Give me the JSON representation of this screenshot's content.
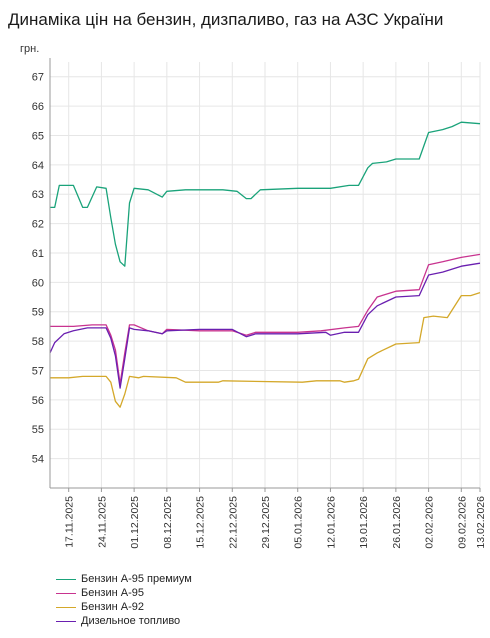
{
  "chart_data": {
    "type": "line",
    "title": "Динаміка цін на бензин, дизпаливо, газ на АЗС України",
    "ylabel": "грн.",
    "ylim": [
      53,
      67.5
    ],
    "yticks": [
      54,
      55,
      56,
      57,
      58,
      59,
      60,
      61,
      62,
      63,
      64,
      65,
      66,
      67
    ],
    "xlim": [
      "2025-11-13",
      "2026-02-13"
    ],
    "xticks": [
      "17.11.2025",
      "24.11.2025",
      "01.12.2025",
      "08.12.2025",
      "15.12.2025",
      "22.12.2025",
      "29.12.2025",
      "05.01.2026",
      "12.01.2026",
      "19.01.2026",
      "26.01.2026",
      "02.02.2026",
      "09.02.2026",
      "13.02.2026"
    ],
    "grid": true,
    "legend": "bottom",
    "series": [
      {
        "name": "Бензин А-95 премиум",
        "color": "#1aa37a",
        "points": [
          [
            "2025-11-13",
            62.55
          ],
          [
            "2025-11-14",
            62.55
          ],
          [
            "2025-11-15",
            63.3
          ],
          [
            "2025-11-18",
            63.3
          ],
          [
            "2025-11-20",
            62.55
          ],
          [
            "2025-11-21",
            62.55
          ],
          [
            "2025-11-23",
            63.25
          ],
          [
            "2025-11-25",
            63.2
          ],
          [
            "2025-11-26",
            62.2
          ],
          [
            "2025-11-27",
            61.3
          ],
          [
            "2025-11-28",
            60.7
          ],
          [
            "2025-11-29",
            60.55
          ],
          [
            "2025-11-30",
            62.7
          ],
          [
            "2025-12-01",
            63.2
          ],
          [
            "2025-12-04",
            63.15
          ],
          [
            "2025-12-07",
            62.9
          ],
          [
            "2025-12-08",
            63.1
          ],
          [
            "2025-12-12",
            63.15
          ],
          [
            "2025-12-20",
            63.15
          ],
          [
            "2025-12-23",
            63.1
          ],
          [
            "2025-12-25",
            62.85
          ],
          [
            "2025-12-26",
            62.85
          ],
          [
            "2025-12-28",
            63.15
          ],
          [
            "2026-01-05",
            63.2
          ],
          [
            "2026-01-12",
            63.2
          ],
          [
            "2026-01-16",
            63.3
          ],
          [
            "2026-01-18",
            63.3
          ],
          [
            "2026-01-20",
            63.9
          ],
          [
            "2026-01-21",
            64.05
          ],
          [
            "2026-01-24",
            64.1
          ],
          [
            "2026-01-26",
            64.2
          ],
          [
            "2026-01-31",
            64.2
          ],
          [
            "2026-02-02",
            65.1
          ],
          [
            "2026-02-05",
            65.2
          ],
          [
            "2026-02-07",
            65.3
          ],
          [
            "2026-02-09",
            65.45
          ],
          [
            "2026-02-13",
            65.4
          ]
        ]
      },
      {
        "name": "Бензин А-95",
        "color": "#c8338f",
        "points": [
          [
            "2025-11-13",
            58.5
          ],
          [
            "2025-11-18",
            58.5
          ],
          [
            "2025-11-22",
            58.55
          ],
          [
            "2025-11-25",
            58.55
          ],
          [
            "2025-11-26",
            58.2
          ],
          [
            "2025-11-27",
            57.7
          ],
          [
            "2025-11-28",
            56.55
          ],
          [
            "2025-11-29",
            57.6
          ],
          [
            "2025-11-30",
            58.55
          ],
          [
            "2025-12-01",
            58.55
          ],
          [
            "2025-12-04",
            58.35
          ],
          [
            "2025-12-07",
            58.25
          ],
          [
            "2025-12-08",
            58.4
          ],
          [
            "2025-12-15",
            58.35
          ],
          [
            "2025-12-22",
            58.35
          ],
          [
            "2025-12-25",
            58.2
          ],
          [
            "2025-12-27",
            58.3
          ],
          [
            "2026-01-05",
            58.3
          ],
          [
            "2026-01-10",
            58.35
          ],
          [
            "2026-01-15",
            58.45
          ],
          [
            "2026-01-18",
            58.5
          ],
          [
            "2026-01-20",
            59.05
          ],
          [
            "2026-01-22",
            59.5
          ],
          [
            "2026-01-26",
            59.7
          ],
          [
            "2026-01-31",
            59.75
          ],
          [
            "2026-02-02",
            60.6
          ],
          [
            "2026-02-05",
            60.7
          ],
          [
            "2026-02-09",
            60.85
          ],
          [
            "2026-02-13",
            60.95
          ]
        ]
      },
      {
        "name": "Бензин А-92",
        "color": "#d4a82a",
        "points": [
          [
            "2025-11-13",
            56.75
          ],
          [
            "2025-11-17",
            56.75
          ],
          [
            "2025-11-20",
            56.8
          ],
          [
            "2025-11-25",
            56.8
          ],
          [
            "2025-11-26",
            56.6
          ],
          [
            "2025-11-27",
            55.95
          ],
          [
            "2025-11-28",
            55.75
          ],
          [
            "2025-11-29",
            56.2
          ],
          [
            "2025-11-30",
            56.8
          ],
          [
            "2025-12-02",
            56.75
          ],
          [
            "2025-12-03",
            56.8
          ],
          [
            "2025-12-10",
            56.75
          ],
          [
            "2025-12-12",
            56.6
          ],
          [
            "2025-12-19",
            56.6
          ],
          [
            "2025-12-20",
            56.65
          ],
          [
            "2026-01-06",
            56.6
          ],
          [
            "2026-01-09",
            56.65
          ],
          [
            "2026-01-14",
            56.65
          ],
          [
            "2026-01-15",
            56.6
          ],
          [
            "2026-01-17",
            56.65
          ],
          [
            "2026-01-18",
            56.7
          ],
          [
            "2026-01-20",
            57.4
          ],
          [
            "2026-01-22",
            57.6
          ],
          [
            "2026-01-26",
            57.9
          ],
          [
            "2026-01-31",
            57.95
          ],
          [
            "2026-02-01",
            58.8
          ],
          [
            "2026-02-03",
            58.85
          ],
          [
            "2026-02-06",
            58.8
          ],
          [
            "2026-02-09",
            59.55
          ],
          [
            "2026-02-11",
            59.55
          ],
          [
            "2026-02-13",
            59.65
          ]
        ]
      },
      {
        "name": "Дизельное топливо",
        "color": "#6a1fb0",
        "points": [
          [
            "2025-11-13",
            57.6
          ],
          [
            "2025-11-14",
            57.95
          ],
          [
            "2025-11-16",
            58.25
          ],
          [
            "2025-11-18",
            58.35
          ],
          [
            "2025-11-21",
            58.45
          ],
          [
            "2025-11-25",
            58.45
          ],
          [
            "2025-11-26",
            58.1
          ],
          [
            "2025-11-27",
            57.5
          ],
          [
            "2025-11-28",
            56.4
          ],
          [
            "2025-11-29",
            57.4
          ],
          [
            "2025-11-30",
            58.45
          ],
          [
            "2025-12-01",
            58.4
          ],
          [
            "2025-12-04",
            58.35
          ],
          [
            "2025-12-07",
            58.25
          ],
          [
            "2025-12-08",
            58.35
          ],
          [
            "2025-12-15",
            58.4
          ],
          [
            "2025-12-22",
            58.4
          ],
          [
            "2025-12-25",
            58.15
          ],
          [
            "2025-12-27",
            58.25
          ],
          [
            "2026-01-05",
            58.25
          ],
          [
            "2026-01-11",
            58.3
          ],
          [
            "2026-01-12",
            58.2
          ],
          [
            "2026-01-15",
            58.3
          ],
          [
            "2026-01-18",
            58.3
          ],
          [
            "2026-01-20",
            58.9
          ],
          [
            "2026-01-22",
            59.2
          ],
          [
            "2026-01-26",
            59.5
          ],
          [
            "2026-01-31",
            59.55
          ],
          [
            "2026-02-02",
            60.25
          ],
          [
            "2026-02-05",
            60.35
          ],
          [
            "2026-02-09",
            60.55
          ],
          [
            "2026-02-13",
            60.65
          ]
        ]
      }
    ]
  }
}
